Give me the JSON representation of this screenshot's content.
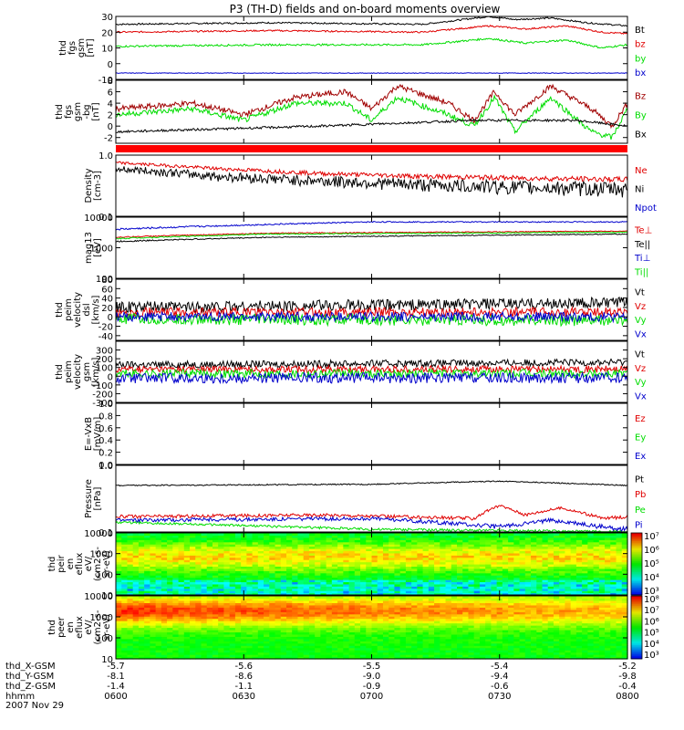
{
  "title": "P3 (TH-D) fields and on-board moments overview",
  "date": "2007 Nov 29",
  "ephemeris": {
    "rows": [
      {
        "label": "thd_X-GSM",
        "values": [
          "-5.7",
          "-5.6",
          "-5.5",
          "-5.4",
          "-5.2"
        ]
      },
      {
        "label": "thd_Y-GSM",
        "values": [
          "-8.1",
          "-8.6",
          "-9.0",
          "-9.4",
          "-9.8"
        ]
      },
      {
        "label": "thd_Z-GSM",
        "values": [
          "-1.4",
          "-1.1",
          "-0.9",
          "-0.6",
          "-0.4"
        ]
      },
      {
        "label": "hhmm",
        "values": [
          "0600",
          "0630",
          "0700",
          "0730",
          "0800"
        ]
      }
    ]
  },
  "chart_data": [
    {
      "id": "fgs",
      "type": "line",
      "ylabel": [
        "thd",
        "fgs",
        "gsm",
        "[nT]"
      ],
      "ylim": [
        -10,
        30
      ],
      "scale": "linear",
      "yticks": [
        {
          "v": -10,
          "t": "-10"
        },
        {
          "v": 0,
          "t": "0"
        },
        {
          "v": 10,
          "t": "10"
        },
        {
          "v": 20,
          "t": "20"
        },
        {
          "v": 30,
          "t": "30"
        }
      ],
      "series": [
        {
          "name": "Bt",
          "color": "#000000",
          "base": 25,
          "noise": 0.5,
          "trend": [
            [
              0,
              25
            ],
            [
              0.3,
              26
            ],
            [
              0.6,
              25
            ],
            [
              0.73,
              30
            ],
            [
              0.78,
              28
            ],
            [
              0.85,
              29
            ],
            [
              0.92,
              26
            ],
            [
              1,
              24
            ]
          ]
        },
        {
          "name": "bz",
          "color": "#e00000",
          "base": 20,
          "noise": 0.5,
          "trend": [
            [
              0,
              20
            ],
            [
              0.3,
              21
            ],
            [
              0.6,
              20
            ],
            [
              0.73,
              24
            ],
            [
              0.8,
              22
            ],
            [
              0.88,
              24
            ],
            [
              0.95,
              20
            ],
            [
              1,
              19
            ]
          ]
        },
        {
          "name": "by",
          "color": "#00dd00",
          "base": 11,
          "noise": 0.6,
          "trend": [
            [
              0,
              11
            ],
            [
              0.3,
              12
            ],
            [
              0.6,
              12
            ],
            [
              0.73,
              16
            ],
            [
              0.8,
              13
            ],
            [
              0.88,
              15
            ],
            [
              0.95,
              10
            ],
            [
              1,
              12
            ]
          ]
        },
        {
          "name": "bx",
          "color": "#0000cc",
          "base": -6,
          "noise": 0.2,
          "trend": [
            [
              0,
              -6
            ],
            [
              1,
              -6
            ]
          ]
        }
      ]
    },
    {
      "id": "fgs_dsl",
      "type": "line",
      "ylabel": [
        "thd",
        "fgs",
        "gsm",
        "-bg",
        "[nT]"
      ],
      "ylim": [
        -3,
        8
      ],
      "scale": "linear",
      "yticks": [
        {
          "v": -2,
          "t": "-2"
        },
        {
          "v": 0,
          "t": "0"
        },
        {
          "v": 2,
          "t": "2"
        },
        {
          "v": 4,
          "t": "4"
        },
        {
          "v": 6,
          "t": "6"
        },
        {
          "v": 8,
          "t": "8"
        }
      ],
      "series": [
        {
          "name": "Bz",
          "color": "#a00000",
          "base": 3,
          "noise": 0.5,
          "trend": [
            [
              0,
              3
            ],
            [
              0.15,
              4
            ],
            [
              0.25,
              2
            ],
            [
              0.35,
              5
            ],
            [
              0.45,
              6
            ],
            [
              0.5,
              3
            ],
            [
              0.55,
              7
            ],
            [
              0.65,
              4
            ],
            [
              0.7,
              1
            ],
            [
              0.74,
              6
            ],
            [
              0.78,
              2
            ],
            [
              0.85,
              7
            ],
            [
              0.93,
              3
            ],
            [
              0.97,
              0
            ],
            [
              1,
              4
            ]
          ]
        },
        {
          "name": "By",
          "color": "#00dd00",
          "base": 2,
          "noise": 0.5,
          "trend": [
            [
              0,
              2
            ],
            [
              0.15,
              3
            ],
            [
              0.25,
              1
            ],
            [
              0.35,
              4
            ],
            [
              0.45,
              4
            ],
            [
              0.5,
              1
            ],
            [
              0.55,
              5
            ],
            [
              0.65,
              2
            ],
            [
              0.7,
              0
            ],
            [
              0.74,
              5
            ],
            [
              0.78,
              -1
            ],
            [
              0.85,
              5
            ],
            [
              0.93,
              -1
            ],
            [
              0.97,
              -2
            ],
            [
              1,
              3
            ]
          ]
        },
        {
          "name": "Bx",
          "color": "#000000",
          "base": -1,
          "noise": 0.2,
          "trend": [
            [
              0,
              -1
            ],
            [
              0.4,
              0
            ],
            [
              0.7,
              1
            ],
            [
              0.9,
              1
            ],
            [
              1,
              0
            ]
          ]
        }
      ]
    },
    {
      "id": "density",
      "type": "line",
      "ylabel": [
        "Density",
        "[cm-3]"
      ],
      "ylim": [
        0.1,
        1.0
      ],
      "scale": "log",
      "yticks": [
        {
          "v": 0.1,
          "t": "0.1"
        },
        {
          "v": 1.0,
          "t": "1.0"
        }
      ],
      "series": [
        {
          "name": "Ne",
          "color": "#e00000",
          "base": 0.6,
          "noise": 0.04,
          "trend": [
            [
              0,
              0.75
            ],
            [
              0.2,
              0.6
            ],
            [
              0.4,
              0.5
            ],
            [
              0.6,
              0.45
            ],
            [
              0.8,
              0.42
            ],
            [
              1,
              0.4
            ]
          ]
        },
        {
          "name": "Ni",
          "color": "#000000",
          "base": 0.5,
          "noise": 0.08,
          "trend": [
            [
              0,
              0.6
            ],
            [
              0.2,
              0.45
            ],
            [
              0.4,
              0.38
            ],
            [
              0.6,
              0.33
            ],
            [
              0.8,
              0.3
            ],
            [
              1,
              0.28
            ]
          ]
        },
        {
          "name": "Npot",
          "color": "#0000cc",
          "base": 0,
          "noise": 0,
          "trend": []
        }
      ]
    },
    {
      "id": "temp",
      "type": "line",
      "ylabel": [
        "mag13",
        "[eV]"
      ],
      "ylim": [
        100,
        10000
      ],
      "scale": "log",
      "yticks": [
        {
          "v": 100,
          "t": "100"
        },
        {
          "v": 1000,
          "t": "1000"
        },
        {
          "v": 10000,
          "t": "10000"
        }
      ],
      "series": [
        {
          "name": "Te⊥",
          "color": "#e00000",
          "base": 3000,
          "noise": 100,
          "trend": [
            [
              0,
              2200
            ],
            [
              0.3,
              3000
            ],
            [
              1,
              3500
            ]
          ]
        },
        {
          "name": "Te||",
          "color": "#000000",
          "base": 2000,
          "noise": 80,
          "trend": [
            [
              0,
              1600
            ],
            [
              0.3,
              2200
            ],
            [
              1,
              2800
            ]
          ]
        },
        {
          "name": "Ti⊥",
          "color": "#0000cc",
          "base": 6000,
          "noise": 300,
          "trend": [
            [
              0,
              4000
            ],
            [
              0.5,
              7000
            ],
            [
              1,
              7000
            ]
          ]
        },
        {
          "name": "Ti||",
          "color": "#00dd00",
          "base": 2500,
          "noise": 100,
          "trend": [
            [
              0,
              2000
            ],
            [
              0.3,
              2800
            ],
            [
              1,
              3200
            ]
          ]
        }
      ]
    },
    {
      "id": "peim_dsl",
      "type": "line",
      "ylabel": [
        "thd",
        "peim",
        "velocity",
        "dsl",
        "[km/s]"
      ],
      "ylim": [
        -50,
        80
      ],
      "scale": "linear",
      "yticks": [
        {
          "v": -40,
          "t": "-40"
        },
        {
          "v": -20,
          "t": "-20"
        },
        {
          "v": 0,
          "t": "0"
        },
        {
          "v": 20,
          "t": "20"
        },
        {
          "v": 40,
          "t": "40"
        },
        {
          "v": 60,
          "t": "60"
        },
        {
          "v": 80,
          "t": "80"
        }
      ],
      "series": [
        {
          "name": "Vt",
          "color": "#000000",
          "base": 25,
          "noise": 12,
          "trend": [
            [
              0,
              20
            ],
            [
              1,
              30
            ]
          ]
        },
        {
          "name": "Vz",
          "color": "#e00000",
          "base": 10,
          "noise": 10,
          "trend": [
            [
              0,
              10
            ],
            [
              1,
              10
            ]
          ]
        },
        {
          "name": "Vy",
          "color": "#00dd00",
          "base": -5,
          "noise": 12,
          "trend": [
            [
              0,
              -5
            ],
            [
              1,
              -8
            ]
          ]
        },
        {
          "name": "Vx",
          "color": "#0000cc",
          "base": 0,
          "noise": 10,
          "trend": [
            [
              0,
              0
            ],
            [
              1,
              0
            ]
          ]
        }
      ]
    },
    {
      "id": "peim_gsm",
      "type": "line",
      "ylabel": [
        "thd",
        "peim",
        "velocity",
        "gsm",
        "[km/s]"
      ],
      "ylim": [
        -300,
        400
      ],
      "scale": "linear",
      "yticks": [
        {
          "v": -300,
          "t": "-300"
        },
        {
          "v": -200,
          "t": "-200"
        },
        {
          "v": -100,
          "t": "-100"
        },
        {
          "v": 0,
          "t": "0"
        },
        {
          "v": 100,
          "t": "100"
        },
        {
          "v": 200,
          "t": "200"
        },
        {
          "v": 300,
          "t": "300"
        }
      ],
      "series": [
        {
          "name": "Vt",
          "color": "#000000",
          "base": 150,
          "noise": 40,
          "trend": [
            [
              0,
              130
            ],
            [
              1,
              160
            ]
          ]
        },
        {
          "name": "Vz",
          "color": "#e00000",
          "base": 80,
          "noise": 40,
          "trend": [
            [
              0,
              80
            ],
            [
              1,
              80
            ]
          ]
        },
        {
          "name": "Vy",
          "color": "#00dd00",
          "base": 30,
          "noise": 50,
          "trend": [
            [
              0,
              30
            ],
            [
              1,
              30
            ]
          ]
        },
        {
          "name": "Vx",
          "color": "#0000cc",
          "base": -20,
          "noise": 60,
          "trend": [
            [
              0,
              -20
            ],
            [
              1,
              -20
            ]
          ]
        }
      ]
    },
    {
      "id": "efield",
      "type": "line",
      "ylabel": [
        "E=-VxB",
        "[mV/m]"
      ],
      "ylim": [
        0,
        1
      ],
      "scale": "linear",
      "yticks": [
        {
          "v": 0.0,
          "t": "0.0"
        },
        {
          "v": 0.2,
          "t": "0.2"
        },
        {
          "v": 0.4,
          "t": "0.4"
        },
        {
          "v": 0.6,
          "t": "0.6"
        },
        {
          "v": 0.8,
          "t": "0.8"
        },
        {
          "v": 1.0,
          "t": "1.0"
        }
      ],
      "series": [
        {
          "name": "Ez",
          "color": "#e00000",
          "base": 0,
          "noise": 0,
          "trend": []
        },
        {
          "name": "Ey",
          "color": "#00dd00",
          "base": 0,
          "noise": 0,
          "trend": []
        },
        {
          "name": "Ex",
          "color": "#0000cc",
          "base": 0,
          "noise": 0,
          "trend": []
        }
      ]
    },
    {
      "id": "pressure",
      "type": "line",
      "ylabel": [
        "Pressure",
        "[nPa]"
      ],
      "ylim": [
        0.1,
        1.0
      ],
      "scale": "log",
      "yticks": [
        {
          "v": 0.1,
          "t": "0.1"
        },
        {
          "v": 1.0,
          "t": "1.0"
        }
      ],
      "series": [
        {
          "name": "Pt",
          "color": "#000000",
          "base": 0.5,
          "noise": 0.01,
          "trend": [
            [
              0,
              0.5
            ],
            [
              0.5,
              0.52
            ],
            [
              0.75,
              0.58
            ],
            [
              1,
              0.5
            ]
          ]
        },
        {
          "name": "Pb",
          "color": "#e00000",
          "base": 0.2,
          "noise": 0.01,
          "trend": [
            [
              0,
              0.17
            ],
            [
              0.4,
              0.18
            ],
            [
              0.7,
              0.16
            ],
            [
              0.75,
              0.25
            ],
            [
              0.8,
              0.18
            ],
            [
              0.87,
              0.23
            ],
            [
              0.95,
              0.16
            ],
            [
              1,
              0.17
            ]
          ]
        },
        {
          "name": "Pe",
          "color": "#00dd00",
          "base": 0.12,
          "noise": 0.005,
          "trend": [
            [
              0,
              0.14
            ],
            [
              0.5,
              0.11
            ],
            [
              1,
              0.1
            ]
          ]
        },
        {
          "name": "Pi",
          "color": "#0000cc",
          "base": 0.14,
          "noise": 0.01,
          "trend": [
            [
              0,
              0.15
            ],
            [
              0.5,
              0.16
            ],
            [
              0.75,
              0.12
            ],
            [
              0.85,
              0.15
            ],
            [
              0.95,
              0.12
            ],
            [
              1,
              0.11
            ]
          ]
        }
      ]
    },
    {
      "id": "peir_spec",
      "type": "heatmap",
      "ylabel": [
        "thd",
        "peir",
        "en",
        "eflux",
        "eV/",
        "(cm2-s-",
        "sr-eV)"
      ],
      "ylim": [
        10,
        10000
      ],
      "scale": "log",
      "yticks": [
        {
          "v": 10,
          "t": "10"
        },
        {
          "v": 100,
          "t": "100"
        },
        {
          "v": 1000,
          "t": "1000"
        },
        {
          "v": 10000,
          "t": "10000"
        }
      ],
      "colorbar": {
        "ticks": [
          "10³",
          "10⁴",
          "10⁵",
          "10⁶",
          "10⁷"
        ]
      }
    },
    {
      "id": "peer_spec",
      "type": "heatmap",
      "ylabel": [
        "thd",
        "peer",
        "en",
        "eflux",
        "eV/",
        "(cm2-s-",
        "sr-eV)"
      ],
      "ylim": [
        10,
        10000
      ],
      "scale": "log",
      "yticks": [
        {
          "v": 10,
          "t": "10"
        },
        {
          "v": 100,
          "t": "100"
        },
        {
          "v": 1000,
          "t": "1000"
        },
        {
          "v": 10000,
          "t": "10000"
        }
      ],
      "colorbar": {
        "ticks": [
          "10³",
          "10⁴",
          "10⁵",
          "10⁶",
          "10⁷",
          "10⁸"
        ]
      }
    }
  ]
}
